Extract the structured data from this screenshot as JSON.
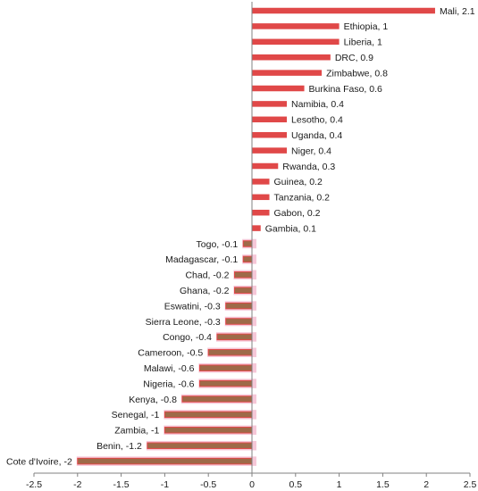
{
  "chart_data": {
    "type": "bar",
    "orientation": "horizontal",
    "xlim": [
      -2.5,
      2.5
    ],
    "x_ticks": [
      -2.5,
      -2,
      -1.5,
      -1,
      -0.5,
      0,
      0.5,
      1,
      1.5,
      2,
      2.5
    ],
    "grid": false,
    "colors": {
      "positive": "#e04848",
      "negative_fill": "#9e6a48",
      "negative_outline": "#e04848",
      "negative_halo": "#f6c8d8",
      "axis": "#808080"
    },
    "data": [
      {
        "label": "Mali",
        "value": 2.1
      },
      {
        "label": "Ethiopia",
        "value": 1
      },
      {
        "label": "Liberia",
        "value": 1
      },
      {
        "label": "DRC",
        "value": 0.9
      },
      {
        "label": "Zimbabwe",
        "value": 0.8
      },
      {
        "label": "Burkina Faso",
        "value": 0.6
      },
      {
        "label": "Namibia",
        "value": 0.4
      },
      {
        "label": "Lesotho",
        "value": 0.4
      },
      {
        "label": "Uganda",
        "value": 0.4
      },
      {
        "label": "Niger",
        "value": 0.4
      },
      {
        "label": "Rwanda",
        "value": 0.3
      },
      {
        "label": "Guinea",
        "value": 0.2
      },
      {
        "label": "Tanzania",
        "value": 0.2
      },
      {
        "label": "Gabon",
        "value": 0.2
      },
      {
        "label": "Gambia",
        "value": 0.1
      },
      {
        "label": "Togo",
        "value": -0.1
      },
      {
        "label": "Madagascar",
        "value": -0.1
      },
      {
        "label": "Chad",
        "value": -0.2
      },
      {
        "label": "Ghana",
        "value": -0.2
      },
      {
        "label": "Eswatini",
        "value": -0.3
      },
      {
        "label": "Sierra Leone",
        "value": -0.3
      },
      {
        "label": "Congo",
        "value": -0.4
      },
      {
        "label": "Cameroon",
        "value": -0.5
      },
      {
        "label": "Malawi",
        "value": -0.6
      },
      {
        "label": "Nigeria",
        "value": -0.6
      },
      {
        "label": "Kenya",
        "value": -0.8
      },
      {
        "label": "Senegal",
        "value": -1
      },
      {
        "label": "Zambia",
        "value": -1
      },
      {
        "label": "Benin",
        "value": -1.2
      },
      {
        "label": "Cote d'Ivoire",
        "value": -2
      }
    ]
  }
}
